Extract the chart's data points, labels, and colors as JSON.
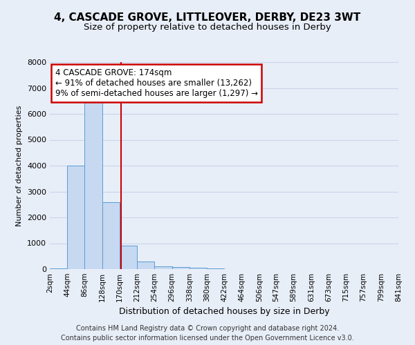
{
  "title": "4, CASCADE GROVE, LITTLEOVER, DERBY, DE23 3WT",
  "subtitle": "Size of property relative to detached houses in Derby",
  "xlabel": "Distribution of detached houses by size in Derby",
  "ylabel": "Number of detached properties",
  "footer_line1": "Contains HM Land Registry data © Crown copyright and database right 2024.",
  "footer_line2": "Contains public sector information licensed under the Open Government Licence v3.0.",
  "annotation_line1": "4 CASCADE GROVE: 174sqm",
  "annotation_line2": "← 91% of detached houses are smaller (13,262)",
  "annotation_line3": "9% of semi-detached houses are larger (1,297) →",
  "bar_edges": [
    2,
    44,
    86,
    128,
    170,
    212,
    254,
    296,
    338,
    380,
    422,
    464,
    506,
    547,
    589,
    631,
    673,
    715,
    757,
    799,
    841
  ],
  "bar_heights": [
    40,
    4000,
    6500,
    2600,
    900,
    300,
    100,
    80,
    50,
    30,
    0,
    0,
    0,
    0,
    0,
    0,
    0,
    0,
    0,
    0
  ],
  "bar_color": "#c6d9f1",
  "bar_edge_color": "#5b9bd5",
  "property_line_x": 174,
  "property_line_color": "#cc0000",
  "annotation_box_color": "#cc0000",
  "annotation_box_fill": "#ffffff",
  "ylim": [
    0,
    8000
  ],
  "yticks": [
    0,
    1000,
    2000,
    3000,
    4000,
    5000,
    6000,
    7000,
    8000
  ],
  "grid_color": "#c8d4e8",
  "background_color": "#e8eef8",
  "axes_background": "#e8eef8",
  "title_fontsize": 11,
  "subtitle_fontsize": 9.5,
  "xlabel_fontsize": 9,
  "ylabel_fontsize": 8,
  "tick_fontsize": 7.5,
  "annotation_fontsize": 8.5,
  "footer_fontsize": 7
}
